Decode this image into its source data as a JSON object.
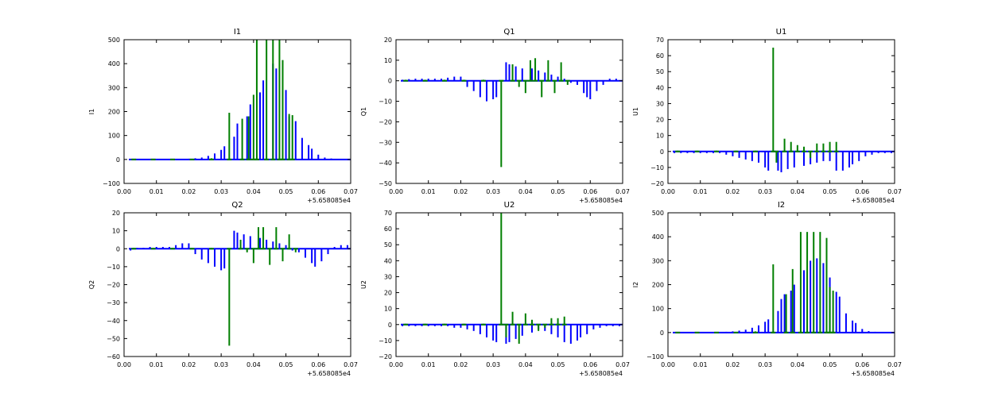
{
  "figure": {
    "offset_label": "+5.658085e4"
  },
  "colors": {
    "blue": "#0000ff",
    "green": "#007f00",
    "axis": "#000000",
    "background": "#ffffff"
  },
  "chart_data": [
    {
      "type": "stem",
      "title": "I1",
      "ylabel": "I1",
      "xlim": [
        0.0,
        0.07
      ],
      "ylim": [
        -100,
        500
      ],
      "xticks": [
        "0.00",
        "0.01",
        "0.02",
        "0.03",
        "0.04",
        "0.05",
        "0.06",
        "0.07"
      ],
      "yticks": [
        "−100",
        "0",
        "100",
        "200",
        "300",
        "400",
        "500"
      ],
      "ytick_values": [
        -100,
        0,
        100,
        200,
        300,
        400,
        500
      ],
      "series": [
        {
          "color": "blue",
          "x": [
            0.002,
            0.004,
            0.006,
            0.008,
            0.01,
            0.012,
            0.014,
            0.016,
            0.018,
            0.02,
            0.022,
            0.024,
            0.026,
            0.028,
            0.03,
            0.031,
            0.034,
            0.035,
            0.038,
            0.039,
            0.042,
            0.043,
            0.046,
            0.047,
            0.05,
            0.051,
            0.053,
            0.055,
            0.057,
            0.058,
            0.06,
            0.062,
            0.064,
            0.066,
            0.068
          ],
          "y": [
            1,
            1,
            1,
            1,
            1,
            1,
            1,
            1,
            2,
            3,
            5,
            8,
            15,
            25,
            40,
            55,
            95,
            150,
            180,
            230,
            280,
            330,
            400,
            380,
            290,
            180,
            160,
            90,
            60,
            45,
            20,
            8,
            4,
            2,
            1
          ]
        },
        {
          "color": "green",
          "x": [
            0.003,
            0.009,
            0.015,
            0.021,
            0.027,
            0.0325,
            0.0365,
            0.0385,
            0.04,
            0.041,
            0.044,
            0.046,
            0.048,
            0.049,
            0.051,
            0.052
          ],
          "y": [
            1,
            1,
            1,
            1,
            5,
            195,
            170,
            180,
            270,
            500,
            500,
            500,
            500,
            415,
            190,
            185
          ]
        }
      ]
    },
    {
      "type": "stem",
      "title": "Q1",
      "ylabel": "Q1",
      "xlim": [
        0.0,
        0.07
      ],
      "ylim": [
        -50,
        20
      ],
      "xticks": [
        "0.00",
        "0.01",
        "0.02",
        "0.03",
        "0.04",
        "0.05",
        "0.06",
        "0.07"
      ],
      "yticks": [
        "−50",
        "−40",
        "−30",
        "−20",
        "−10",
        "0",
        "10",
        "20"
      ],
      "ytick_values": [
        -50,
        -40,
        -30,
        -20,
        -10,
        0,
        10,
        20
      ],
      "series": [
        {
          "color": "blue",
          "x": [
            0.002,
            0.004,
            0.006,
            0.008,
            0.01,
            0.012,
            0.014,
            0.016,
            0.018,
            0.02,
            0.022,
            0.024,
            0.026,
            0.028,
            0.03,
            0.031,
            0.034,
            0.035,
            0.037,
            0.039,
            0.042,
            0.044,
            0.046,
            0.048,
            0.05,
            0.052,
            0.054,
            0.056,
            0.058,
            0.059,
            0.06,
            0.062,
            0.064,
            0.066,
            0.068
          ],
          "y": [
            0.5,
            0.8,
            1,
            1,
            1,
            1,
            1,
            1.5,
            2,
            2,
            -3,
            -5,
            -8,
            -10,
            -9,
            -8,
            9,
            8,
            7,
            6,
            6,
            5,
            4,
            3,
            2,
            1,
            -1,
            -2,
            -6,
            -8,
            -9,
            -5,
            -2,
            1,
            1
          ]
        },
        {
          "color": "green",
          "x": [
            0.003,
            0.009,
            0.015,
            0.021,
            0.027,
            0.0325,
            0.036,
            0.038,
            0.04,
            0.0415,
            0.043,
            0.045,
            0.047,
            0.049,
            0.051,
            0.053
          ],
          "y": [
            0.5,
            0.5,
            0.5,
            0.5,
            0.5,
            -42,
            8,
            -3,
            -6,
            10,
            11,
            -8,
            10,
            -6,
            9,
            -2
          ]
        }
      ]
    },
    {
      "type": "stem",
      "title": "U1",
      "ylabel": "U1",
      "xlim": [
        0.0,
        0.07
      ],
      "ylim": [
        -20,
        70
      ],
      "xticks": [
        "0.00",
        "0.01",
        "0.02",
        "0.03",
        "0.04",
        "0.05",
        "0.06",
        "0.07"
      ],
      "yticks": [
        "−20",
        "−10",
        "0",
        "10",
        "20",
        "30",
        "40",
        "50",
        "60",
        "70"
      ],
      "ytick_values": [
        -20,
        -10,
        0,
        10,
        20,
        30,
        40,
        50,
        60,
        70
      ],
      "series": [
        {
          "color": "blue",
          "x": [
            0.002,
            0.004,
            0.006,
            0.008,
            0.01,
            0.012,
            0.014,
            0.016,
            0.018,
            0.02,
            0.022,
            0.024,
            0.026,
            0.028,
            0.03,
            0.031,
            0.034,
            0.035,
            0.037,
            0.039,
            0.042,
            0.044,
            0.046,
            0.048,
            0.05,
            0.052,
            0.054,
            0.056,
            0.057,
            0.059,
            0.061,
            0.063,
            0.065,
            0.067,
            0.069
          ],
          "y": [
            -1,
            -1,
            -1,
            -1,
            -1,
            -1,
            -1,
            -1,
            -2,
            -3,
            -4,
            -5,
            -6,
            -7,
            -10,
            -12,
            -12,
            -13,
            -11,
            -10,
            -9,
            -8,
            -7,
            -6,
            -6,
            -12,
            -12,
            -10,
            -8,
            -6,
            -3,
            -2,
            -1,
            -1,
            -1
          ]
        },
        {
          "color": "green",
          "x": [
            0.003,
            0.009,
            0.015,
            0.021,
            0.027,
            0.0325,
            0.0335,
            0.036,
            0.038,
            0.04,
            0.042,
            0.044,
            0.046,
            0.048,
            0.05,
            0.052
          ],
          "y": [
            0.5,
            0.5,
            0.5,
            0.5,
            0.5,
            65,
            -7,
            8,
            6,
            4,
            3,
            -4,
            5,
            5,
            6,
            6
          ]
        }
      ]
    },
    {
      "type": "stem",
      "title": "Q2",
      "ylabel": "Q2",
      "xlim": [
        0.0,
        0.07
      ],
      "ylim": [
        -60,
        20
      ],
      "xticks": [
        "0.00",
        "0.01",
        "0.02",
        "0.03",
        "0.04",
        "0.05",
        "0.06",
        "0.07"
      ],
      "yticks": [
        "−60",
        "−50",
        "−40",
        "−30",
        "−20",
        "−10",
        "0",
        "10",
        "20"
      ],
      "ytick_values": [
        -60,
        -50,
        -40,
        -30,
        -20,
        -10,
        0,
        10,
        20
      ],
      "series": [
        {
          "color": "blue",
          "x": [
            0.002,
            0.004,
            0.006,
            0.008,
            0.01,
            0.012,
            0.014,
            0.016,
            0.018,
            0.02,
            0.022,
            0.024,
            0.026,
            0.028,
            0.03,
            0.031,
            0.034,
            0.035,
            0.037,
            0.039,
            0.042,
            0.044,
            0.046,
            0.048,
            0.05,
            0.052,
            0.054,
            0.056,
            0.058,
            0.059,
            0.061,
            0.063,
            0.065,
            0.067,
            0.069
          ],
          "y": [
            -1,
            0.5,
            0.5,
            1,
            1,
            1,
            1,
            2,
            3,
            3,
            -3,
            -6,
            -8,
            -10,
            -12,
            -11,
            10,
            9,
            8,
            7,
            6,
            5,
            4,
            3,
            2,
            -1,
            -2,
            -5,
            -8,
            -10,
            -7,
            -3,
            1,
            2,
            2
          ]
        },
        {
          "color": "green",
          "x": [
            0.003,
            0.009,
            0.015,
            0.021,
            0.027,
            0.0325,
            0.036,
            0.038,
            0.04,
            0.0415,
            0.043,
            0.045,
            0.047,
            0.049,
            0.051,
            0.053
          ],
          "y": [
            0.5,
            0.5,
            0.5,
            0.5,
            0.5,
            -54,
            5,
            -2,
            -8,
            12,
            12,
            -9,
            12,
            -7,
            8,
            -2
          ]
        }
      ]
    },
    {
      "type": "stem",
      "title": "U2",
      "ylabel": "U2",
      "xlim": [
        0.0,
        0.07
      ],
      "ylim": [
        -20,
        70
      ],
      "xticks": [
        "0.00",
        "0.01",
        "0.02",
        "0.03",
        "0.04",
        "0.05",
        "0.06",
        "0.07"
      ],
      "yticks": [
        "−20",
        "−10",
        "0",
        "10",
        "20",
        "30",
        "40",
        "50",
        "60",
        "70"
      ],
      "ytick_values": [
        -20,
        -10,
        0,
        10,
        20,
        30,
        40,
        50,
        60,
        70
      ],
      "series": [
        {
          "color": "blue",
          "x": [
            0.002,
            0.004,
            0.006,
            0.008,
            0.01,
            0.012,
            0.014,
            0.016,
            0.018,
            0.02,
            0.022,
            0.024,
            0.026,
            0.028,
            0.03,
            0.031,
            0.034,
            0.035,
            0.037,
            0.039,
            0.042,
            0.044,
            0.046,
            0.048,
            0.05,
            0.052,
            0.054,
            0.056,
            0.057,
            0.059,
            0.061,
            0.063,
            0.065,
            0.067,
            0.069
          ],
          "y": [
            -1,
            -1,
            -1,
            -1,
            -1,
            -1,
            -1,
            -1,
            -2,
            -2,
            -3,
            -4,
            -6,
            -8,
            -10,
            -11,
            -12,
            -11,
            -9,
            -7,
            -5,
            -3,
            -4,
            -6,
            -8,
            -11,
            -12,
            -10,
            -8,
            -6,
            -3,
            -2,
            -1,
            -1,
            -1
          ]
        },
        {
          "color": "green",
          "x": [
            0.003,
            0.009,
            0.015,
            0.021,
            0.027,
            0.0325,
            0.034,
            0.036,
            0.038,
            0.04,
            0.042,
            0.044,
            0.046,
            0.048,
            0.05,
            0.052
          ],
          "y": [
            0.5,
            0.5,
            0.5,
            0.5,
            0.5,
            70,
            -8,
            8,
            -12,
            7,
            3,
            -4,
            -2,
            4,
            4,
            5
          ]
        }
      ]
    },
    {
      "type": "stem",
      "title": "I2",
      "ylabel": "I2",
      "xlim": [
        0.0,
        0.07
      ],
      "ylim": [
        -100,
        500
      ],
      "xticks": [
        "0.00",
        "0.01",
        "0.02",
        "0.03",
        "0.04",
        "0.05",
        "0.06",
        "0.07"
      ],
      "yticks": [
        "−100",
        "0",
        "100",
        "200",
        "300",
        "400",
        "500"
      ],
      "ytick_values": [
        -100,
        0,
        100,
        200,
        300,
        400,
        500
      ],
      "series": [
        {
          "color": "blue",
          "x": [
            0.002,
            0.004,
            0.006,
            0.008,
            0.01,
            0.012,
            0.014,
            0.016,
            0.018,
            0.02,
            0.022,
            0.024,
            0.026,
            0.028,
            0.03,
            0.031,
            0.034,
            0.035,
            0.036,
            0.038,
            0.039,
            0.042,
            0.044,
            0.046,
            0.048,
            0.05,
            0.052,
            0.053,
            0.055,
            0.057,
            0.058,
            0.06,
            0.062,
            0.064,
            0.066,
            0.068
          ],
          "y": [
            1,
            1,
            1,
            1,
            1,
            1,
            1,
            2,
            3,
            5,
            8,
            12,
            20,
            30,
            45,
            55,
            90,
            140,
            160,
            175,
            200,
            260,
            300,
            310,
            290,
            230,
            170,
            150,
            80,
            50,
            40,
            15,
            6,
            3,
            2,
            1
          ]
        },
        {
          "color": "green",
          "x": [
            0.003,
            0.009,
            0.015,
            0.021,
            0.027,
            0.0325,
            0.0365,
            0.0385,
            0.041,
            0.043,
            0.045,
            0.047,
            0.049,
            0.05,
            0.051
          ],
          "y": [
            1,
            1,
            1,
            1,
            5,
            285,
            160,
            265,
            420,
            420,
            420,
            420,
            395,
            190,
            175
          ]
        }
      ]
    }
  ]
}
